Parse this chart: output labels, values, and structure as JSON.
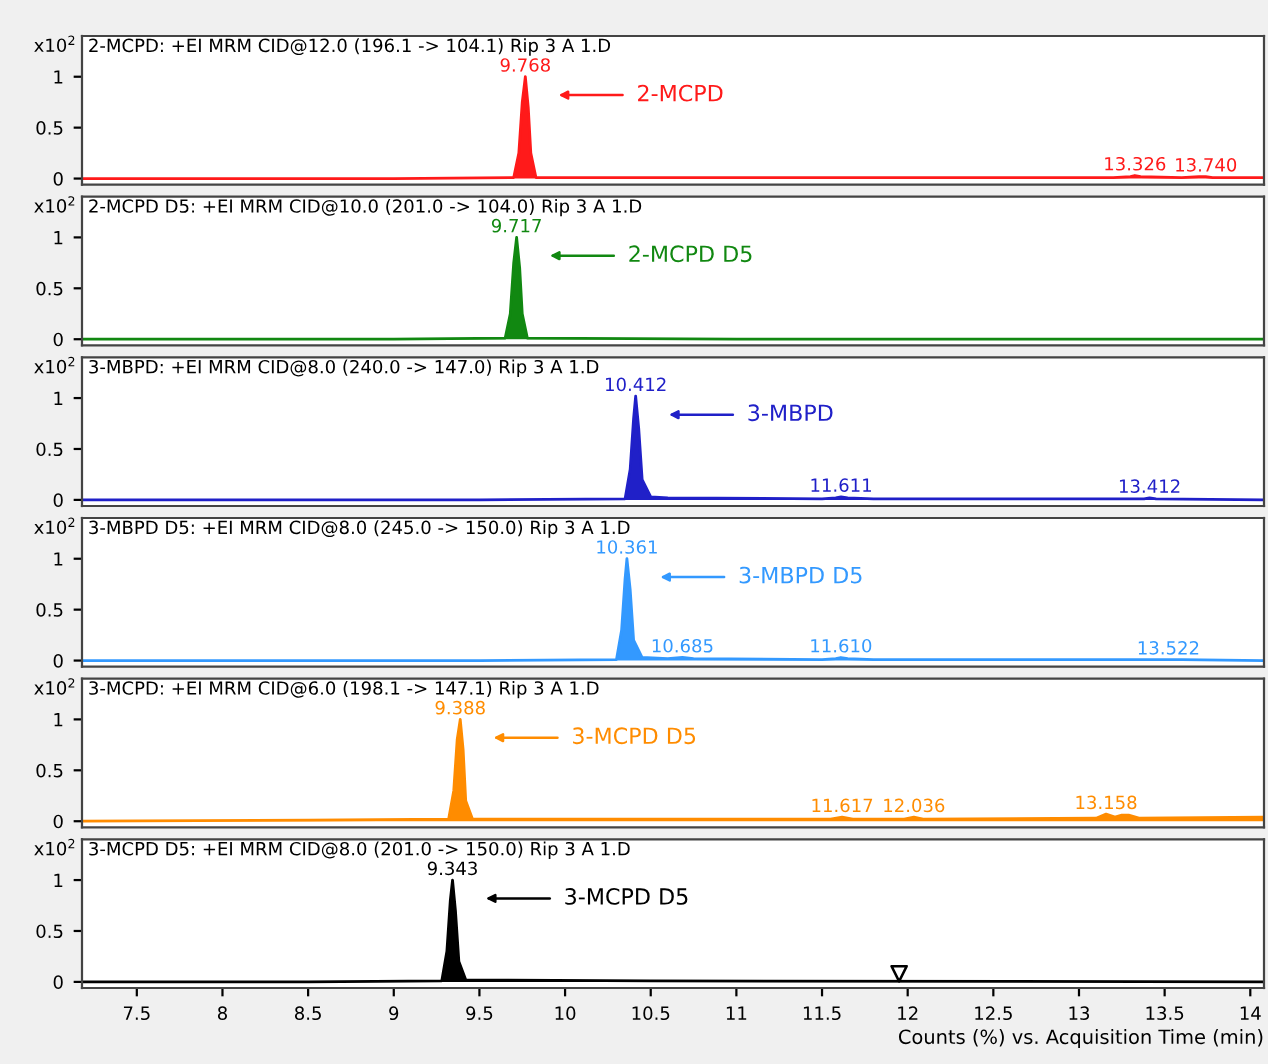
{
  "chart_data": [
    {
      "type": "area",
      "title": "2-MCPD: +EI MRM CID@12.0 (196.1 -> 104.1) Rip 3 A 1.D",
      "ylabel": "x10$^{2}$",
      "xlim": [
        7.18,
        14.08
      ],
      "ylim": [
        -0.06,
        1.4
      ],
      "yticks": [
        0,
        0.5,
        1
      ],
      "tick_labels": "y",
      "grid": false,
      "legend": false,
      "series": [
        {
          "color": "#ff1a1a",
          "x": [
            7.18,
            9.0,
            9.7,
            9.73,
            9.75,
            9.768,
            9.785,
            9.8,
            9.83,
            10.5,
            12.0,
            13.2,
            13.3,
            13.326,
            13.36,
            13.6,
            13.7,
            13.74,
            13.78,
            14.08
          ],
          "values": [
            0.0,
            0.0,
            0.01,
            0.25,
            0.75,
            1.0,
            0.7,
            0.25,
            0.01,
            0.01,
            0.01,
            0.01,
            0.02,
            0.03,
            0.02,
            0.01,
            0.02,
            0.02,
            0.01,
            0.01
          ]
        }
      ],
      "annotations": [
        {
          "text": "9.768",
          "x": 9.768,
          "y": 1.0
        },
        {
          "text": "13.326",
          "x": 13.326,
          "y": 0.03
        },
        {
          "text": "13.740",
          "x": 13.74,
          "y": 0.02
        },
        "2-MCPD"
      ]
    },
    {
      "type": "area",
      "title": "2-MCPD D5: +EI MRM CID@10.0 (201.0 -> 104.0) Rip 3 A 1.D",
      "ylabel": "x10$^{2}$",
      "xlim": [
        7.18,
        14.08
      ],
      "ylim": [
        -0.06,
        1.4
      ],
      "yticks": [
        0,
        0.5,
        1
      ],
      "tick_labels": "y",
      "grid": false,
      "legend": false,
      "series": [
        {
          "color": "#118811",
          "x": [
            7.18,
            9.0,
            9.65,
            9.68,
            9.7,
            9.717,
            9.735,
            9.75,
            9.78,
            11.0,
            14.08
          ],
          "values": [
            0.0,
            0.0,
            0.01,
            0.25,
            0.75,
            1.0,
            0.7,
            0.25,
            0.01,
            0.0,
            0.0
          ]
        }
      ],
      "annotations": [
        {
          "text": "9.717",
          "x": 9.717,
          "y": 1.0
        },
        "2-MCPD D5"
      ]
    },
    {
      "type": "area",
      "title": "3-MBPD: +EI MRM CID@8.0 (240.0 -> 147.0) Rip 3 A 1.D",
      "ylabel": "x10$^{2}$",
      "xlim": [
        7.18,
        14.08
      ],
      "ylim": [
        -0.06,
        1.4
      ],
      "yticks": [
        0,
        0.5,
        1
      ],
      "tick_labels": "y",
      "grid": false,
      "legend": false,
      "series": [
        {
          "color": "#2020c8",
          "x": [
            7.18,
            9.5,
            10.35,
            10.38,
            10.4,
            10.412,
            10.43,
            10.45,
            10.5,
            10.6,
            11.5,
            11.58,
            11.611,
            11.65,
            11.8,
            13.3,
            13.38,
            13.412,
            13.45,
            14.08
          ],
          "values": [
            0.0,
            0.0,
            0.01,
            0.3,
            0.8,
            1.02,
            0.7,
            0.2,
            0.03,
            0.02,
            0.01,
            0.02,
            0.03,
            0.02,
            0.01,
            0.01,
            0.01,
            0.02,
            0.01,
            0.0
          ]
        }
      ],
      "annotations": [
        {
          "text": "10.412",
          "x": 10.412,
          "y": 1.02
        },
        {
          "text": "11.611",
          "x": 11.611,
          "y": 0.03
        },
        {
          "text": "13.412",
          "x": 13.412,
          "y": 0.02
        },
        "3-MBPD"
      ]
    },
    {
      "type": "area",
      "title": "3-MBPD D5: +EI MRM CID@8.0 (245.0 -> 150.0) Rip 3 A 1.D",
      "ylabel": "x10$^{2}$",
      "xlim": [
        7.18,
        14.08
      ],
      "ylim": [
        -0.06,
        1.4
      ],
      "yticks": [
        0,
        0.5,
        1
      ],
      "tick_labels": "y",
      "grid": false,
      "legend": false,
      "series": [
        {
          "color": "#3399ff",
          "x": [
            7.18,
            9.5,
            10.3,
            10.33,
            10.35,
            10.361,
            10.38,
            10.4,
            10.45,
            10.6,
            10.685,
            10.75,
            11.5,
            11.58,
            11.61,
            11.65,
            11.8,
            13.45,
            13.522,
            13.6,
            14.08
          ],
          "values": [
            0.0,
            0.0,
            0.01,
            0.3,
            0.8,
            1.0,
            0.7,
            0.2,
            0.03,
            0.02,
            0.03,
            0.02,
            0.01,
            0.02,
            0.03,
            0.02,
            0.01,
            0.01,
            0.01,
            0.01,
            0.0
          ]
        }
      ],
      "annotations": [
        {
          "text": "10.361",
          "x": 10.361,
          "y": 1.0
        },
        {
          "text": "10.685",
          "x": 10.685,
          "y": 0.03
        },
        {
          "text": "11.610",
          "x": 11.61,
          "y": 0.03
        },
        {
          "text": "13.522",
          "x": 13.522,
          "y": 0.01
        },
        "3-MBPD D5"
      ]
    },
    {
      "type": "area",
      "title": "3-MCPD: +EI MRM CID@6.0 (198.1 -> 147.1) Rip 3 A 1.D",
      "ylabel": "x10$^{2}$",
      "xlim": [
        7.18,
        14.08
      ],
      "ylim": [
        -0.06,
        1.4
      ],
      "yticks": [
        0,
        0.5,
        1
      ],
      "tick_labels": "y",
      "grid": false,
      "legend": false,
      "series": [
        {
          "color": "#ff8c00",
          "x": [
            7.18,
            8.5,
            9.32,
            9.35,
            9.37,
            9.388,
            9.405,
            9.42,
            9.46,
            10.5,
            11.55,
            11.617,
            11.68,
            11.98,
            12.036,
            12.09,
            13.1,
            13.158,
            13.21,
            13.25,
            13.29,
            13.35,
            14.08
          ],
          "values": [
            0.0,
            0.01,
            0.02,
            0.3,
            0.8,
            1.0,
            0.7,
            0.2,
            0.02,
            0.02,
            0.02,
            0.04,
            0.02,
            0.02,
            0.04,
            0.02,
            0.03,
            0.07,
            0.04,
            0.06,
            0.06,
            0.03,
            0.04
          ]
        }
      ],
      "annotations": [
        {
          "text": "9.388",
          "x": 9.388,
          "y": 1.0
        },
        {
          "text": "11.617",
          "x": 11.617,
          "y": 0.04
        },
        {
          "text": "12.036",
          "x": 12.036,
          "y": 0.04
        },
        {
          "text": "13.158",
          "x": 13.158,
          "y": 0.07
        },
        "3-MCPD D5"
      ]
    },
    {
      "type": "area",
      "title": "3-MCPD D5: +EI MRM CID@8.0 (201.0 -> 150.0) Rip 3 A 1.D",
      "ylabel": "x10$^{2}$",
      "xlabel": "Counts (%) vs. Acquisition Time (min)",
      "xlim": [
        7.18,
        14.08
      ],
      "ylim": [
        -0.06,
        1.4
      ],
      "yticks": [
        0,
        0.5,
        1
      ],
      "xticks": [
        7.5,
        8,
        8.5,
        9,
        9.5,
        10,
        10.5,
        11,
        11.5,
        12,
        12.5,
        13,
        13.5,
        14
      ],
      "grid": false,
      "legend": false,
      "series": [
        {
          "color": "#000000",
          "x": [
            7.18,
            8.5,
            9.28,
            9.31,
            9.33,
            9.343,
            9.36,
            9.38,
            9.42,
            10.5,
            14.08
          ],
          "values": [
            0.0,
            0.0,
            0.01,
            0.3,
            0.8,
            1.0,
            0.7,
            0.2,
            0.02,
            0.01,
            0.0
          ]
        },
        {
          "type": "scatter",
          "marker": "triangle",
          "color": "#000000",
          "x": [
            11.95
          ],
          "values": [
            0.08
          ]
        }
      ],
      "annotations": [
        {
          "text": "9.343",
          "x": 9.343,
          "y": 1.0
        },
        "3-MCPD D5"
      ]
    }
  ]
}
